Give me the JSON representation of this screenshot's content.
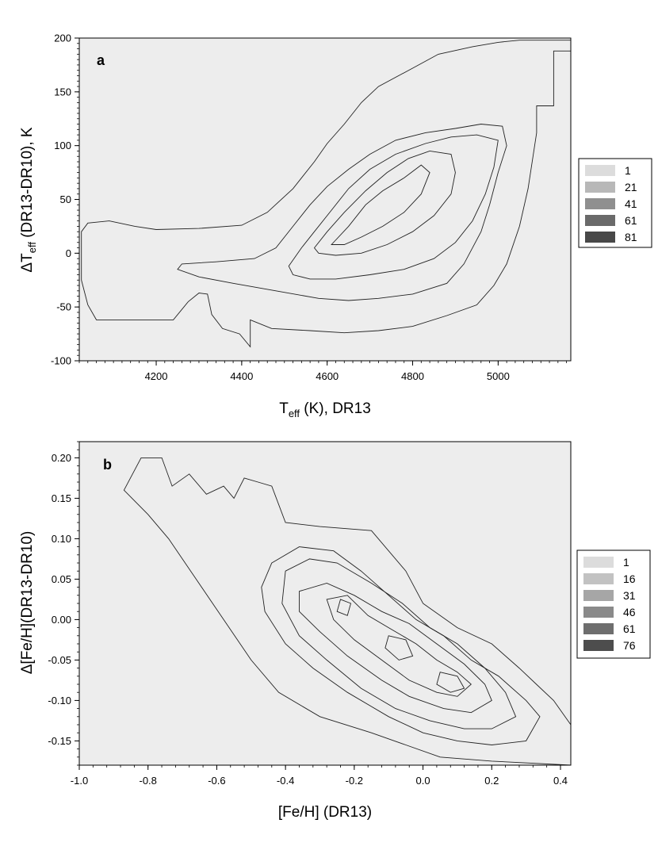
{
  "chart_data": [
    {
      "type": "contour",
      "panel_label": "a",
      "xlabel": {
        "main": "T",
        "sub": "eff",
        "rest": " (K), DR13"
      },
      "ylabel": {
        "delta": "Δ",
        "main": "T",
        "sub": "eff",
        "rest": " (DR13-DR10), K"
      },
      "xlim": [
        4020,
        5170
      ],
      "ylim": [
        -100,
        200
      ],
      "x_ticks": [
        4200,
        4400,
        4600,
        4800,
        5000
      ],
      "y_ticks": [
        -100,
        -50,
        0,
        50,
        100,
        150,
        200
      ],
      "legend": {
        "levels": [
          "1",
          "21",
          "41",
          "61",
          "81"
        ],
        "colors": [
          "#dcdcdc",
          "#b8b8b8",
          "#8f8f8f",
          "#6a6a6a",
          "#484848"
        ]
      },
      "background_color": "#ededed",
      "contours": [
        {
          "level": 1,
          "points": [
            [
              4025,
              20
            ],
            [
              4040,
              28
            ],
            [
              4090,
              30
            ],
            [
              4150,
              25
            ],
            [
              4200,
              22
            ],
            [
              4300,
              23
            ],
            [
              4400,
              26
            ],
            [
              4460,
              38
            ],
            [
              4520,
              60
            ],
            [
              4570,
              85
            ],
            [
              4600,
              102
            ],
            [
              4640,
              120
            ],
            [
              4680,
              140
            ],
            [
              4720,
              155
            ],
            [
              4800,
              172
            ],
            [
              4860,
              185
            ],
            [
              4940,
              192
            ],
            [
              5000,
              196
            ],
            [
              5050,
              198
            ],
            [
              5170,
              198
            ],
            [
              5170,
              188
            ],
            [
              5130,
              188
            ],
            [
              5130,
              137
            ],
            [
              5090,
              137
            ],
            [
              5090,
              112
            ],
            [
              5070,
              60
            ],
            [
              5050,
              25
            ],
            [
              5020,
              -10
            ],
            [
              4990,
              -30
            ],
            [
              4950,
              -48
            ],
            [
              4880,
              -58
            ],
            [
              4800,
              -68
            ],
            [
              4720,
              -72
            ],
            [
              4640,
              -74
            ],
            [
              4560,
              -72
            ],
            [
              4470,
              -70
            ],
            [
              4420,
              -62
            ],
            [
              4420,
              -87
            ],
            [
              4395,
              -75
            ],
            [
              4355,
              -70
            ],
            [
              4330,
              -57
            ],
            [
              4320,
              -38
            ],
            [
              4300,
              -37
            ],
            [
              4275,
              -45
            ],
            [
              4240,
              -62
            ],
            [
              4160,
              -62
            ],
            [
              4100,
              -62
            ],
            [
              4060,
              -62
            ],
            [
              4040,
              -48
            ],
            [
              4025,
              -25
            ]
          ]
        },
        {
          "level": 21,
          "points": [
            [
              4260,
              -10
            ],
            [
              4340,
              -8
            ],
            [
              4430,
              -5
            ],
            [
              4480,
              5
            ],
            [
              4520,
              25
            ],
            [
              4560,
              45
            ],
            [
              4600,
              62
            ],
            [
              4650,
              78
            ],
            [
              4700,
              92
            ],
            [
              4760,
              105
            ],
            [
              4830,
              112
            ],
            [
              4900,
              116
            ],
            [
              4960,
              120
            ],
            [
              5010,
              118
            ],
            [
              5020,
              100
            ],
            [
              5000,
              75
            ],
            [
              4980,
              45
            ],
            [
              4960,
              20
            ],
            [
              4920,
              -10
            ],
            [
              4880,
              -28
            ],
            [
              4800,
              -38
            ],
            [
              4720,
              -42
            ],
            [
              4650,
              -44
            ],
            [
              4580,
              -42
            ],
            [
              4480,
              -35
            ],
            [
              4380,
              -28
            ],
            [
              4300,
              -22
            ],
            [
              4250,
              -15
            ]
          ]
        },
        {
          "level": 41,
          "points": [
            [
              4510,
              -12
            ],
            [
              4540,
              5
            ],
            [
              4570,
              20
            ],
            [
              4610,
              40
            ],
            [
              4650,
              60
            ],
            [
              4700,
              78
            ],
            [
              4760,
              92
            ],
            [
              4830,
              102
            ],
            [
              4890,
              108
            ],
            [
              4950,
              110
            ],
            [
              5000,
              105
            ],
            [
              4990,
              80
            ],
            [
              4970,
              55
            ],
            [
              4940,
              30
            ],
            [
              4900,
              10
            ],
            [
              4850,
              -5
            ],
            [
              4780,
              -15
            ],
            [
              4700,
              -20
            ],
            [
              4620,
              -24
            ],
            [
              4560,
              -24
            ],
            [
              4520,
              -20
            ]
          ]
        },
        {
          "level": 61,
          "points": [
            [
              4570,
              5
            ],
            [
              4600,
              20
            ],
            [
              4640,
              38
            ],
            [
              4690,
              58
            ],
            [
              4740,
              75
            ],
            [
              4790,
              88
            ],
            [
              4840,
              95
            ],
            [
              4890,
              92
            ],
            [
              4900,
              75
            ],
            [
              4890,
              55
            ],
            [
              4850,
              35
            ],
            [
              4800,
              20
            ],
            [
              4740,
              8
            ],
            [
              4680,
              0
            ],
            [
              4620,
              -2
            ],
            [
              4580,
              0
            ]
          ]
        },
        {
          "level": 81,
          "points": [
            [
              4610,
              8
            ],
            [
              4650,
              25
            ],
            [
              4690,
              45
            ],
            [
              4730,
              58
            ],
            [
              4780,
              70
            ],
            [
              4820,
              82
            ],
            [
              4840,
              75
            ],
            [
              4820,
              55
            ],
            [
              4780,
              38
            ],
            [
              4730,
              25
            ],
            [
              4680,
              15
            ],
            [
              4640,
              8
            ]
          ]
        }
      ]
    },
    {
      "type": "contour",
      "panel_label": "b",
      "xlabel": {
        "main": "[Fe/H] (DR13)"
      },
      "ylabel": {
        "main": "Δ[Fe/H](DR13-DR10)"
      },
      "xlim": [
        -1.0,
        0.43
      ],
      "ylim": [
        -0.18,
        0.22
      ],
      "x_ticks": [
        -1.0,
        -0.8,
        -0.6,
        -0.4,
        -0.2,
        0.0,
        0.2,
        0.4
      ],
      "x_tick_labels": [
        "-1.0",
        "-0.8",
        "-0.6",
        "-0.4",
        "-0.2",
        "0.0",
        "0.2",
        "0.4"
      ],
      "y_ticks": [
        -0.15,
        -0.1,
        -0.05,
        0.0,
        0.05,
        0.1,
        0.15,
        0.2
      ],
      "y_tick_labels": [
        "-0.15",
        "-0.10",
        "-0.05",
        "0.00",
        "0.05",
        "0.10",
        "0.15",
        "0.20"
      ],
      "legend": {
        "levels": [
          "1",
          "16",
          "31",
          "46",
          "61",
          "76"
        ],
        "colors": [
          "#dcdcdc",
          "#c2c2c2",
          "#a6a6a6",
          "#8a8a8a",
          "#6e6e6e",
          "#4d4d4d"
        ]
      },
      "background_color": "#ededed",
      "contours": [
        {
          "level": 1,
          "points": [
            [
              -0.87,
              0.16
            ],
            [
              -0.82,
              0.2
            ],
            [
              -0.76,
              0.2
            ],
            [
              -0.73,
              0.165
            ],
            [
              -0.68,
              0.18
            ],
            [
              -0.63,
              0.155
            ],
            [
              -0.58,
              0.165
            ],
            [
              -0.55,
              0.15
            ],
            [
              -0.52,
              0.175
            ],
            [
              -0.48,
              0.17
            ],
            [
              -0.44,
              0.165
            ],
            [
              -0.4,
              0.12
            ],
            [
              -0.3,
              0.115
            ],
            [
              -0.15,
              0.11
            ],
            [
              -0.05,
              0.06
            ],
            [
              0.0,
              0.02
            ],
            [
              0.1,
              -0.01
            ],
            [
              0.2,
              -0.03
            ],
            [
              0.28,
              -0.06
            ],
            [
              0.33,
              -0.08
            ],
            [
              0.38,
              -0.1
            ],
            [
              0.43,
              -0.13
            ],
            [
              0.43,
              -0.18
            ],
            [
              0.2,
              -0.175
            ],
            [
              0.05,
              -0.17
            ],
            [
              -0.05,
              -0.155
            ],
            [
              -0.15,
              -0.14
            ],
            [
              -0.3,
              -0.12
            ],
            [
              -0.42,
              -0.09
            ],
            [
              -0.5,
              -0.05
            ],
            [
              -0.58,
              0.0
            ],
            [
              -0.66,
              0.05
            ],
            [
              -0.74,
              0.1
            ],
            [
              -0.8,
              0.13
            ]
          ]
        },
        {
          "level": 16,
          "points": [
            [
              -0.44,
              0.07
            ],
            [
              -0.36,
              0.09
            ],
            [
              -0.26,
              0.085
            ],
            [
              -0.18,
              0.06
            ],
            [
              -0.1,
              0.03
            ],
            [
              -0.02,
              0.0
            ],
            [
              0.06,
              -0.02
            ],
            [
              0.14,
              -0.05
            ],
            [
              0.22,
              -0.07
            ],
            [
              0.3,
              -0.1
            ],
            [
              0.34,
              -0.12
            ],
            [
              0.3,
              -0.15
            ],
            [
              0.2,
              -0.155
            ],
            [
              0.1,
              -0.15
            ],
            [
              0.0,
              -0.14
            ],
            [
              -0.1,
              -0.12
            ],
            [
              -0.22,
              -0.09
            ],
            [
              -0.32,
              -0.06
            ],
            [
              -0.4,
              -0.03
            ],
            [
              -0.46,
              0.01
            ],
            [
              -0.47,
              0.04
            ]
          ]
        },
        {
          "level": 31,
          "points": [
            [
              -0.4,
              0.06
            ],
            [
              -0.33,
              0.075
            ],
            [
              -0.25,
              0.07
            ],
            [
              -0.15,
              0.045
            ],
            [
              -0.06,
              0.02
            ],
            [
              0.02,
              -0.01
            ],
            [
              0.1,
              -0.03
            ],
            [
              0.18,
              -0.06
            ],
            [
              0.24,
              -0.09
            ],
            [
              0.27,
              -0.12
            ],
            [
              0.2,
              -0.135
            ],
            [
              0.12,
              -0.135
            ],
            [
              0.02,
              -0.125
            ],
            [
              -0.08,
              -0.11
            ],
            [
              -0.18,
              -0.085
            ],
            [
              -0.28,
              -0.05
            ],
            [
              -0.36,
              -0.02
            ],
            [
              -0.41,
              0.02
            ]
          ]
        },
        {
          "level": 46,
          "points": [
            [
              -0.36,
              0.035
            ],
            [
              -0.28,
              0.045
            ],
            [
              -0.2,
              0.03
            ],
            [
              -0.12,
              0.01
            ],
            [
              -0.04,
              -0.005
            ],
            [
              0.04,
              -0.03
            ],
            [
              0.12,
              -0.055
            ],
            [
              0.18,
              -0.08
            ],
            [
              0.2,
              -0.1
            ],
            [
              0.14,
              -0.115
            ],
            [
              0.06,
              -0.11
            ],
            [
              -0.04,
              -0.095
            ],
            [
              -0.12,
              -0.075
            ],
            [
              -0.22,
              -0.045
            ],
            [
              -0.3,
              -0.015
            ],
            [
              -0.36,
              0.01
            ]
          ]
        },
        {
          "level": 61,
          "points": [
            [
              -0.28,
              0.025
            ],
            [
              -0.22,
              0.03
            ],
            [
              -0.16,
              0.005
            ],
            [
              -0.1,
              -0.01
            ],
            [
              -0.02,
              -0.03
            ],
            [
              0.04,
              -0.05
            ],
            [
              0.1,
              -0.065
            ],
            [
              0.14,
              -0.08
            ],
            [
              0.1,
              -0.095
            ],
            [
              0.04,
              -0.09
            ],
            [
              -0.04,
              -0.075
            ],
            [
              -0.12,
              -0.05
            ],
            [
              -0.2,
              -0.025
            ],
            [
              -0.26,
              0.0
            ]
          ]
        },
        {
          "level": 76,
          "points": [
            [
              -0.1,
              -0.02
            ],
            [
              -0.05,
              -0.025
            ],
            [
              -0.03,
              -0.045
            ],
            [
              -0.07,
              -0.05
            ],
            [
              -0.11,
              -0.035
            ]
          ]
        },
        {
          "level": 76,
          "points": [
            [
              0.05,
              -0.065
            ],
            [
              0.1,
              -0.07
            ],
            [
              0.12,
              -0.085
            ],
            [
              0.08,
              -0.09
            ],
            [
              0.04,
              -0.08
            ]
          ]
        },
        {
          "level": 76,
          "points": [
            [
              -0.24,
              0.025
            ],
            [
              -0.21,
              0.02
            ],
            [
              -0.22,
              0.005
            ],
            [
              -0.25,
              0.01
            ]
          ]
        }
      ]
    }
  ]
}
